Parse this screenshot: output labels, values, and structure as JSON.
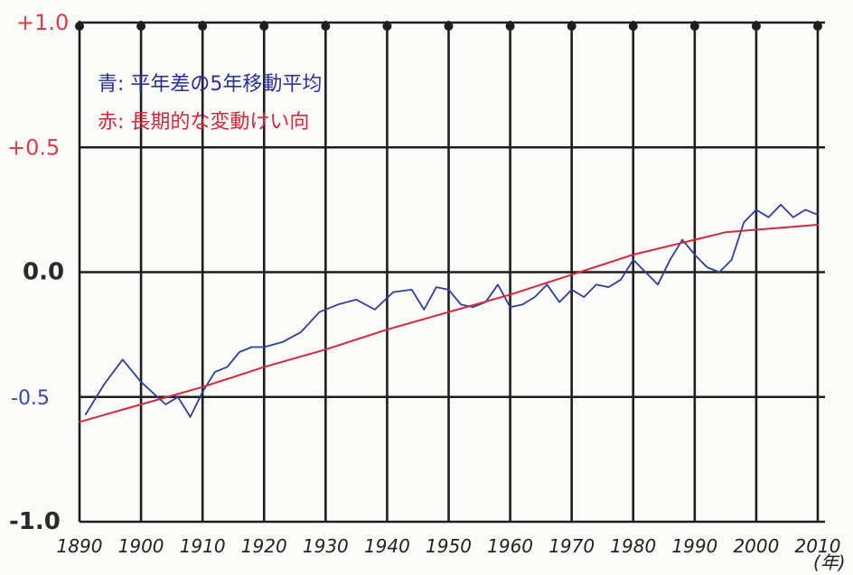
{
  "chart_data": {
    "type": "line",
    "title": "",
    "xlabel": "(年)",
    "ylabel": "",
    "xlim": [
      1890,
      2010
    ],
    "ylim": [
      -1.0,
      1.0
    ],
    "grid": true,
    "x_ticks": [
      "1890",
      "1900",
      "1910",
      "1920",
      "1930",
      "1940",
      "1950",
      "1960",
      "1970",
      "1980",
      "1990",
      "2000",
      "2010"
    ],
    "y_ticks": [
      "+1.0",
      "+0.5",
      "0.0",
      "-0.5",
      "-1.0"
    ],
    "legend": {
      "placement": "top-left",
      "entries": [
        {
          "text": "青: 平年差の5年移動平均",
          "color": "#2a2f9a"
        },
        {
          "text": "赤: 長期的な変動けい向",
          "color": "#d6283a"
        }
      ]
    },
    "series": [
      {
        "color": "#2f3f9a",
        "x": [
          1891,
          1894,
          1897,
          1900,
          1904,
          1906,
          1908,
          1910,
          1912,
          1914,
          1916,
          1918,
          1920,
          1923,
          1926,
          1929,
          1932,
          1935,
          1938,
          1941,
          1944,
          1946,
          1948,
          1950,
          1952,
          1954,
          1956,
          1958,
          1960,
          1962,
          1964,
          1966,
          1968,
          1970,
          1972,
          1974,
          1976,
          1978,
          1980,
          1982,
          1984,
          1986,
          1988,
          1990,
          1992,
          1994,
          1996,
          1998,
          2000,
          2002,
          2004,
          2006,
          2008,
          2010
        ],
        "y": [
          -0.57,
          -0.45,
          -0.35,
          -0.44,
          -0.53,
          -0.5,
          -0.58,
          -0.48,
          -0.4,
          -0.38,
          -0.32,
          -0.3,
          -0.3,
          -0.28,
          -0.24,
          -0.16,
          -0.13,
          -0.11,
          -0.15,
          -0.08,
          -0.07,
          -0.15,
          -0.06,
          -0.07,
          -0.13,
          -0.14,
          -0.12,
          -0.05,
          -0.14,
          -0.13,
          -0.1,
          -0.05,
          -0.12,
          -0.07,
          -0.1,
          -0.05,
          -0.06,
          -0.03,
          0.05,
          0.0,
          -0.05,
          0.05,
          0.13,
          0.07,
          0.02,
          0.0,
          0.05,
          0.2,
          0.25,
          0.22,
          0.27,
          0.22,
          0.25,
          0.23
        ]
      },
      {
        "color": "#d6283a",
        "x": [
          1890,
          1900,
          1910,
          1920,
          1930,
          1940,
          1950,
          1960,
          1970,
          1980,
          1990,
          1995,
          2000,
          2010
        ],
        "y": [
          -0.6,
          -0.53,
          -0.46,
          -0.38,
          -0.31,
          -0.23,
          -0.16,
          -0.09,
          -0.01,
          0.07,
          0.13,
          0.16,
          0.17,
          0.19
        ]
      }
    ]
  }
}
